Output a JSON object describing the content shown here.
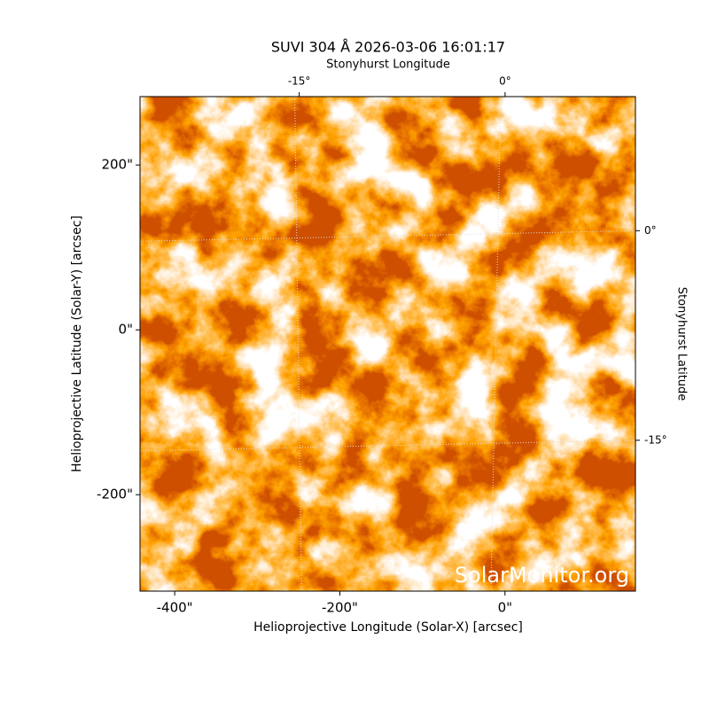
{
  "chart_data": {
    "type": "image",
    "title": "SUVI 304 Å 2026-03-06 16:01:17",
    "x_label": "Helioprojective Longitude (Solar-X) [arcsec]",
    "y_label": "Helioprojective Latitude (Solar-Y) [arcsec]",
    "x2_label": "Stonyhurst Longitude",
    "y2_label": "Stonyhurst Latitude",
    "watermark": "SolarMonitor.org",
    "xlim": [
      -442,
      158
    ],
    "ylim": [
      -317,
      283
    ],
    "xticks": [
      {
        "value": -400,
        "label": "-400\""
      },
      {
        "value": -200,
        "label": "-200\""
      },
      {
        "value": 0,
        "label": "0\""
      }
    ],
    "yticks": [
      {
        "value": -200,
        "label": "-200\""
      },
      {
        "value": 0,
        "label": "0\""
      },
      {
        "value": 200,
        "label": "200\""
      }
    ],
    "x2lim": [
      -26.6,
      9.5
    ],
    "x2ticks": [
      {
        "value": -15,
        "label": "-15°"
      },
      {
        "value": 0,
        "label": "0°"
      }
    ],
    "y2lim": [
      -25.8,
      9.6
    ],
    "y2ticks": [
      {
        "value": -15,
        "label": "-15°"
      },
      {
        "value": 0,
        "label": "0°"
      }
    ],
    "grid": true
  }
}
